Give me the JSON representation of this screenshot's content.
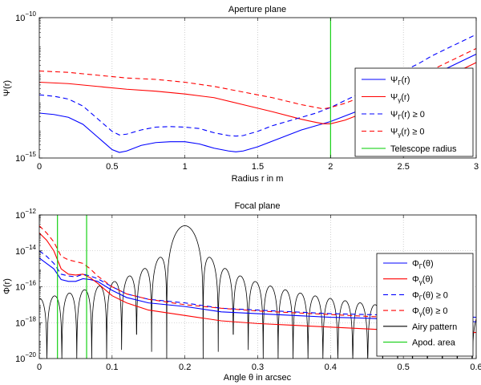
{
  "chart_data": [
    {
      "type": "line",
      "title": "Aperture plane",
      "xlabel": "Radius r in m",
      "ylabel": "Ψ(r)",
      "xlim": [
        0,
        3
      ],
      "ylim_log10": [
        -15,
        -10
      ],
      "x_ticks": [
        "0",
        "0.5",
        "1",
        "1.5",
        "2",
        "2.5",
        "3"
      ],
      "x_tick_values": [
        0,
        0.5,
        1,
        1.5,
        2,
        2.5,
        3
      ],
      "y_ticks": [
        {
          "base": "10",
          "exp": "−10",
          "value": -10
        },
        {
          "base": "10",
          "exp": "−15",
          "value": -15
        }
      ],
      "grid": true,
      "legend_position": "lower-right",
      "series": [
        {
          "name": "ΨΓ(r)",
          "label_main": "Ψ",
          "label_sub": "Γ",
          "label_tail": "(r)",
          "color": "#0000ff",
          "dash": "solid",
          "x": [
            0,
            0.1,
            0.2,
            0.3,
            0.4,
            0.5,
            0.55,
            0.6,
            0.7,
            0.8,
            0.9,
            1.0,
            1.1,
            1.2,
            1.3,
            1.35,
            1.4,
            1.5,
            1.6,
            1.7,
            1.8,
            1.9,
            2.0,
            2.1,
            2.2,
            2.3,
            2.4,
            2.5,
            2.6,
            2.7,
            2.8,
            2.9,
            3.0
          ],
          "log10": [
            -13.4,
            -13.45,
            -13.55,
            -13.8,
            -14.25,
            -14.7,
            -14.8,
            -14.75,
            -14.55,
            -14.45,
            -14.42,
            -14.42,
            -14.5,
            -14.65,
            -14.75,
            -14.78,
            -14.75,
            -14.6,
            -14.4,
            -14.2,
            -14.0,
            -13.85,
            -13.7,
            -13.5,
            -13.3,
            -13.05,
            -12.8,
            -12.55,
            -12.3,
            -12.05,
            -11.8,
            -11.55,
            -11.3
          ]
        },
        {
          "name": "Ψγ(r)",
          "label_main": "Ψ",
          "label_sub": "γ",
          "label_tail": "(r)",
          "color": "#ff0000",
          "dash": "solid",
          "x": [
            0,
            0.2,
            0.4,
            0.6,
            0.8,
            1.0,
            1.2,
            1.4,
            1.6,
            1.8,
            1.9,
            1.95,
            2.0,
            2.1,
            2.2,
            2.3,
            2.4,
            2.5,
            2.6,
            2.7,
            2.8,
            2.9,
            3.0
          ],
          "log10": [
            -12.3,
            -12.35,
            -12.45,
            -12.55,
            -12.62,
            -12.72,
            -12.85,
            -13.1,
            -13.35,
            -13.62,
            -13.73,
            -13.78,
            -13.78,
            -13.65,
            -13.45,
            -13.25,
            -13.0,
            -12.8,
            -12.6,
            -12.35,
            -12.1,
            -11.85,
            -11.6
          ]
        },
        {
          "name": "ΨΓ(r) ≥ 0",
          "label_main": "Ψ",
          "label_sub": "Γ",
          "label_tail": "(r) ≥ 0",
          "color": "#0000ff",
          "dash": "dashed",
          "x": [
            0,
            0.1,
            0.2,
            0.3,
            0.4,
            0.5,
            0.55,
            0.6,
            0.7,
            0.8,
            0.9,
            1.0,
            1.1,
            1.2,
            1.3,
            1.35,
            1.4,
            1.5,
            1.6,
            1.7,
            1.8,
            1.9,
            2.0,
            2.1,
            2.2,
            2.3,
            2.4,
            2.5,
            2.6,
            2.7,
            2.8,
            2.9,
            3.0
          ],
          "log10": [
            -12.75,
            -12.8,
            -12.9,
            -13.15,
            -13.6,
            -14.05,
            -14.18,
            -14.15,
            -14.0,
            -13.9,
            -13.88,
            -13.9,
            -13.95,
            -14.1,
            -14.2,
            -14.22,
            -14.2,
            -14.05,
            -13.85,
            -13.7,
            -13.55,
            -13.4,
            -13.2,
            -12.95,
            -12.7,
            -12.45,
            -12.2,
            -11.9,
            -11.65,
            -11.35,
            -11.1,
            -10.85,
            -10.6
          ]
        },
        {
          "name": "Ψγ(r) ≥ 0",
          "label_main": "Ψ",
          "label_sub": "γ",
          "label_tail": "(r) ≥ 0",
          "color": "#ff0000",
          "dash": "dashed",
          "x": [
            0,
            0.2,
            0.4,
            0.6,
            0.8,
            1.0,
            1.2,
            1.4,
            1.6,
            1.8,
            1.9,
            1.95,
            2.0,
            2.1,
            2.2,
            2.3,
            2.4,
            2.5,
            2.6,
            2.7,
            2.8,
            2.9,
            3.0
          ],
          "log10": [
            -11.9,
            -11.95,
            -12.05,
            -12.15,
            -12.2,
            -12.3,
            -12.45,
            -12.65,
            -12.85,
            -13.1,
            -13.2,
            -13.25,
            -13.2,
            -13.05,
            -12.85,
            -12.65,
            -12.45,
            -12.25,
            -12.05,
            -11.85,
            -11.6,
            -11.35,
            -11.1
          ]
        }
      ],
      "vertical_lines": [
        {
          "name": "Telescope radius",
          "label": "Telescope radius",
          "x": 2.0,
          "color": "#00cc00"
        }
      ]
    },
    {
      "type": "line",
      "title": "Focal plane",
      "xlabel": "Angle θ in arcsec",
      "ylabel": "Φ(r)",
      "xlim": [
        0,
        0.6
      ],
      "ylim_log10": [
        -20,
        -12
      ],
      "x_ticks": [
        "0",
        "0.1",
        "0.2",
        "0.3",
        "0.4",
        "0.5",
        "0.6"
      ],
      "x_tick_values": [
        0,
        0.1,
        0.2,
        0.3,
        0.4,
        0.5,
        0.6
      ],
      "y_ticks": [
        {
          "base": "10",
          "exp": "−12",
          "value": -12
        },
        {
          "base": "10",
          "exp": "−14",
          "value": -14
        },
        {
          "base": "10",
          "exp": "−16",
          "value": -16
        },
        {
          "base": "10",
          "exp": "−18",
          "value": -18
        },
        {
          "base": "10",
          "exp": "−20",
          "value": -20
        }
      ],
      "grid": true,
      "legend_position": "lower-right",
      "series": [
        {
          "name": "ΦΓ(θ)",
          "label_main": "Φ",
          "label_sub": "Γ",
          "label_tail": "(θ)",
          "color": "#0000ff",
          "dash": "solid",
          "x": [
            0.0,
            0.01,
            0.02,
            0.03,
            0.04,
            0.05,
            0.06,
            0.07,
            0.08,
            0.1,
            0.12,
            0.15,
            0.2,
            0.25,
            0.3,
            0.35,
            0.4,
            0.45,
            0.5,
            0.55,
            0.6
          ],
          "log10": [
            -14.4,
            -14.7,
            -15.0,
            -15.6,
            -15.7,
            -15.7,
            -15.55,
            -15.6,
            -15.7,
            -16.2,
            -16.6,
            -16.9,
            -17.1,
            -17.4,
            -17.5,
            -17.6,
            -17.7,
            -17.75,
            -17.85,
            -17.9,
            -17.95
          ]
        },
        {
          "name": "Φγ(θ)",
          "label_main": "Φ",
          "label_sub": "γ",
          "label_tail": "(θ)",
          "color": "#ff0000",
          "dash": "solid",
          "x": [
            0.0,
            0.01,
            0.02,
            0.03,
            0.04,
            0.05,
            0.06,
            0.07,
            0.08,
            0.1,
            0.12,
            0.15,
            0.2,
            0.25,
            0.3,
            0.35,
            0.4,
            0.45,
            0.5,
            0.55,
            0.6
          ],
          "log10": [
            -13.0,
            -13.4,
            -14.0,
            -15.0,
            -15.3,
            -15.35,
            -15.3,
            -15.5,
            -15.8,
            -16.5,
            -16.9,
            -17.3,
            -17.6,
            -17.9,
            -18.05,
            -18.15,
            -18.25,
            -18.35,
            -18.45,
            -18.5,
            -18.55
          ]
        },
        {
          "name": "ΦΓ(θ) ≥ 0",
          "label_main": "Φ",
          "label_sub": "Γ",
          "label_tail": "(θ) ≥ 0",
          "color": "#0000ff",
          "dash": "dashed",
          "x": [
            0.0,
            0.01,
            0.02,
            0.03,
            0.04,
            0.05,
            0.06,
            0.07,
            0.08,
            0.1,
            0.12,
            0.15,
            0.2,
            0.25,
            0.3,
            0.35,
            0.4,
            0.45,
            0.5,
            0.55,
            0.6
          ],
          "log10": [
            -14.0,
            -14.3,
            -14.7,
            -15.3,
            -15.4,
            -15.45,
            -15.3,
            -15.4,
            -15.55,
            -16.0,
            -16.4,
            -16.7,
            -16.9,
            -17.2,
            -17.3,
            -17.4,
            -17.5,
            -17.55,
            -17.6,
            -17.65,
            -17.7
          ]
        },
        {
          "name": "Φγ(θ) ≥ 0",
          "label_main": "Φ",
          "label_sub": "γ",
          "label_tail": "(θ) ≥ 0",
          "color": "#ff0000",
          "dash": "dashed",
          "x": [
            0.0,
            0.01,
            0.02,
            0.03,
            0.04,
            0.05,
            0.06,
            0.07,
            0.08,
            0.1,
            0.12,
            0.15,
            0.2,
            0.25,
            0.3,
            0.35,
            0.4,
            0.45,
            0.5,
            0.55,
            0.6
          ],
          "log10": [
            -12.6,
            -13.0,
            -13.5,
            -14.3,
            -14.5,
            -14.6,
            -14.7,
            -15.0,
            -15.4,
            -16.0,
            -16.4,
            -16.7,
            -17.0,
            -17.2,
            -17.35,
            -17.45,
            -17.55,
            -17.65,
            -17.75,
            -17.8,
            -17.85
          ]
        }
      ],
      "airy": {
        "name": "Airy pattern",
        "label": "Airy pattern",
        "color": "#000000",
        "center": 0.2,
        "first_zero": 0.025,
        "peak_log10": -12.6,
        "floor_log10": -20
      },
      "vertical_lines": [
        {
          "name": "Apod. area",
          "label": "Apod. area",
          "x": 0.025,
          "color": "#00cc00"
        },
        {
          "name": "Apod. area",
          "label": "Apod. area",
          "x": 0.065,
          "color": "#00cc00"
        }
      ]
    }
  ]
}
